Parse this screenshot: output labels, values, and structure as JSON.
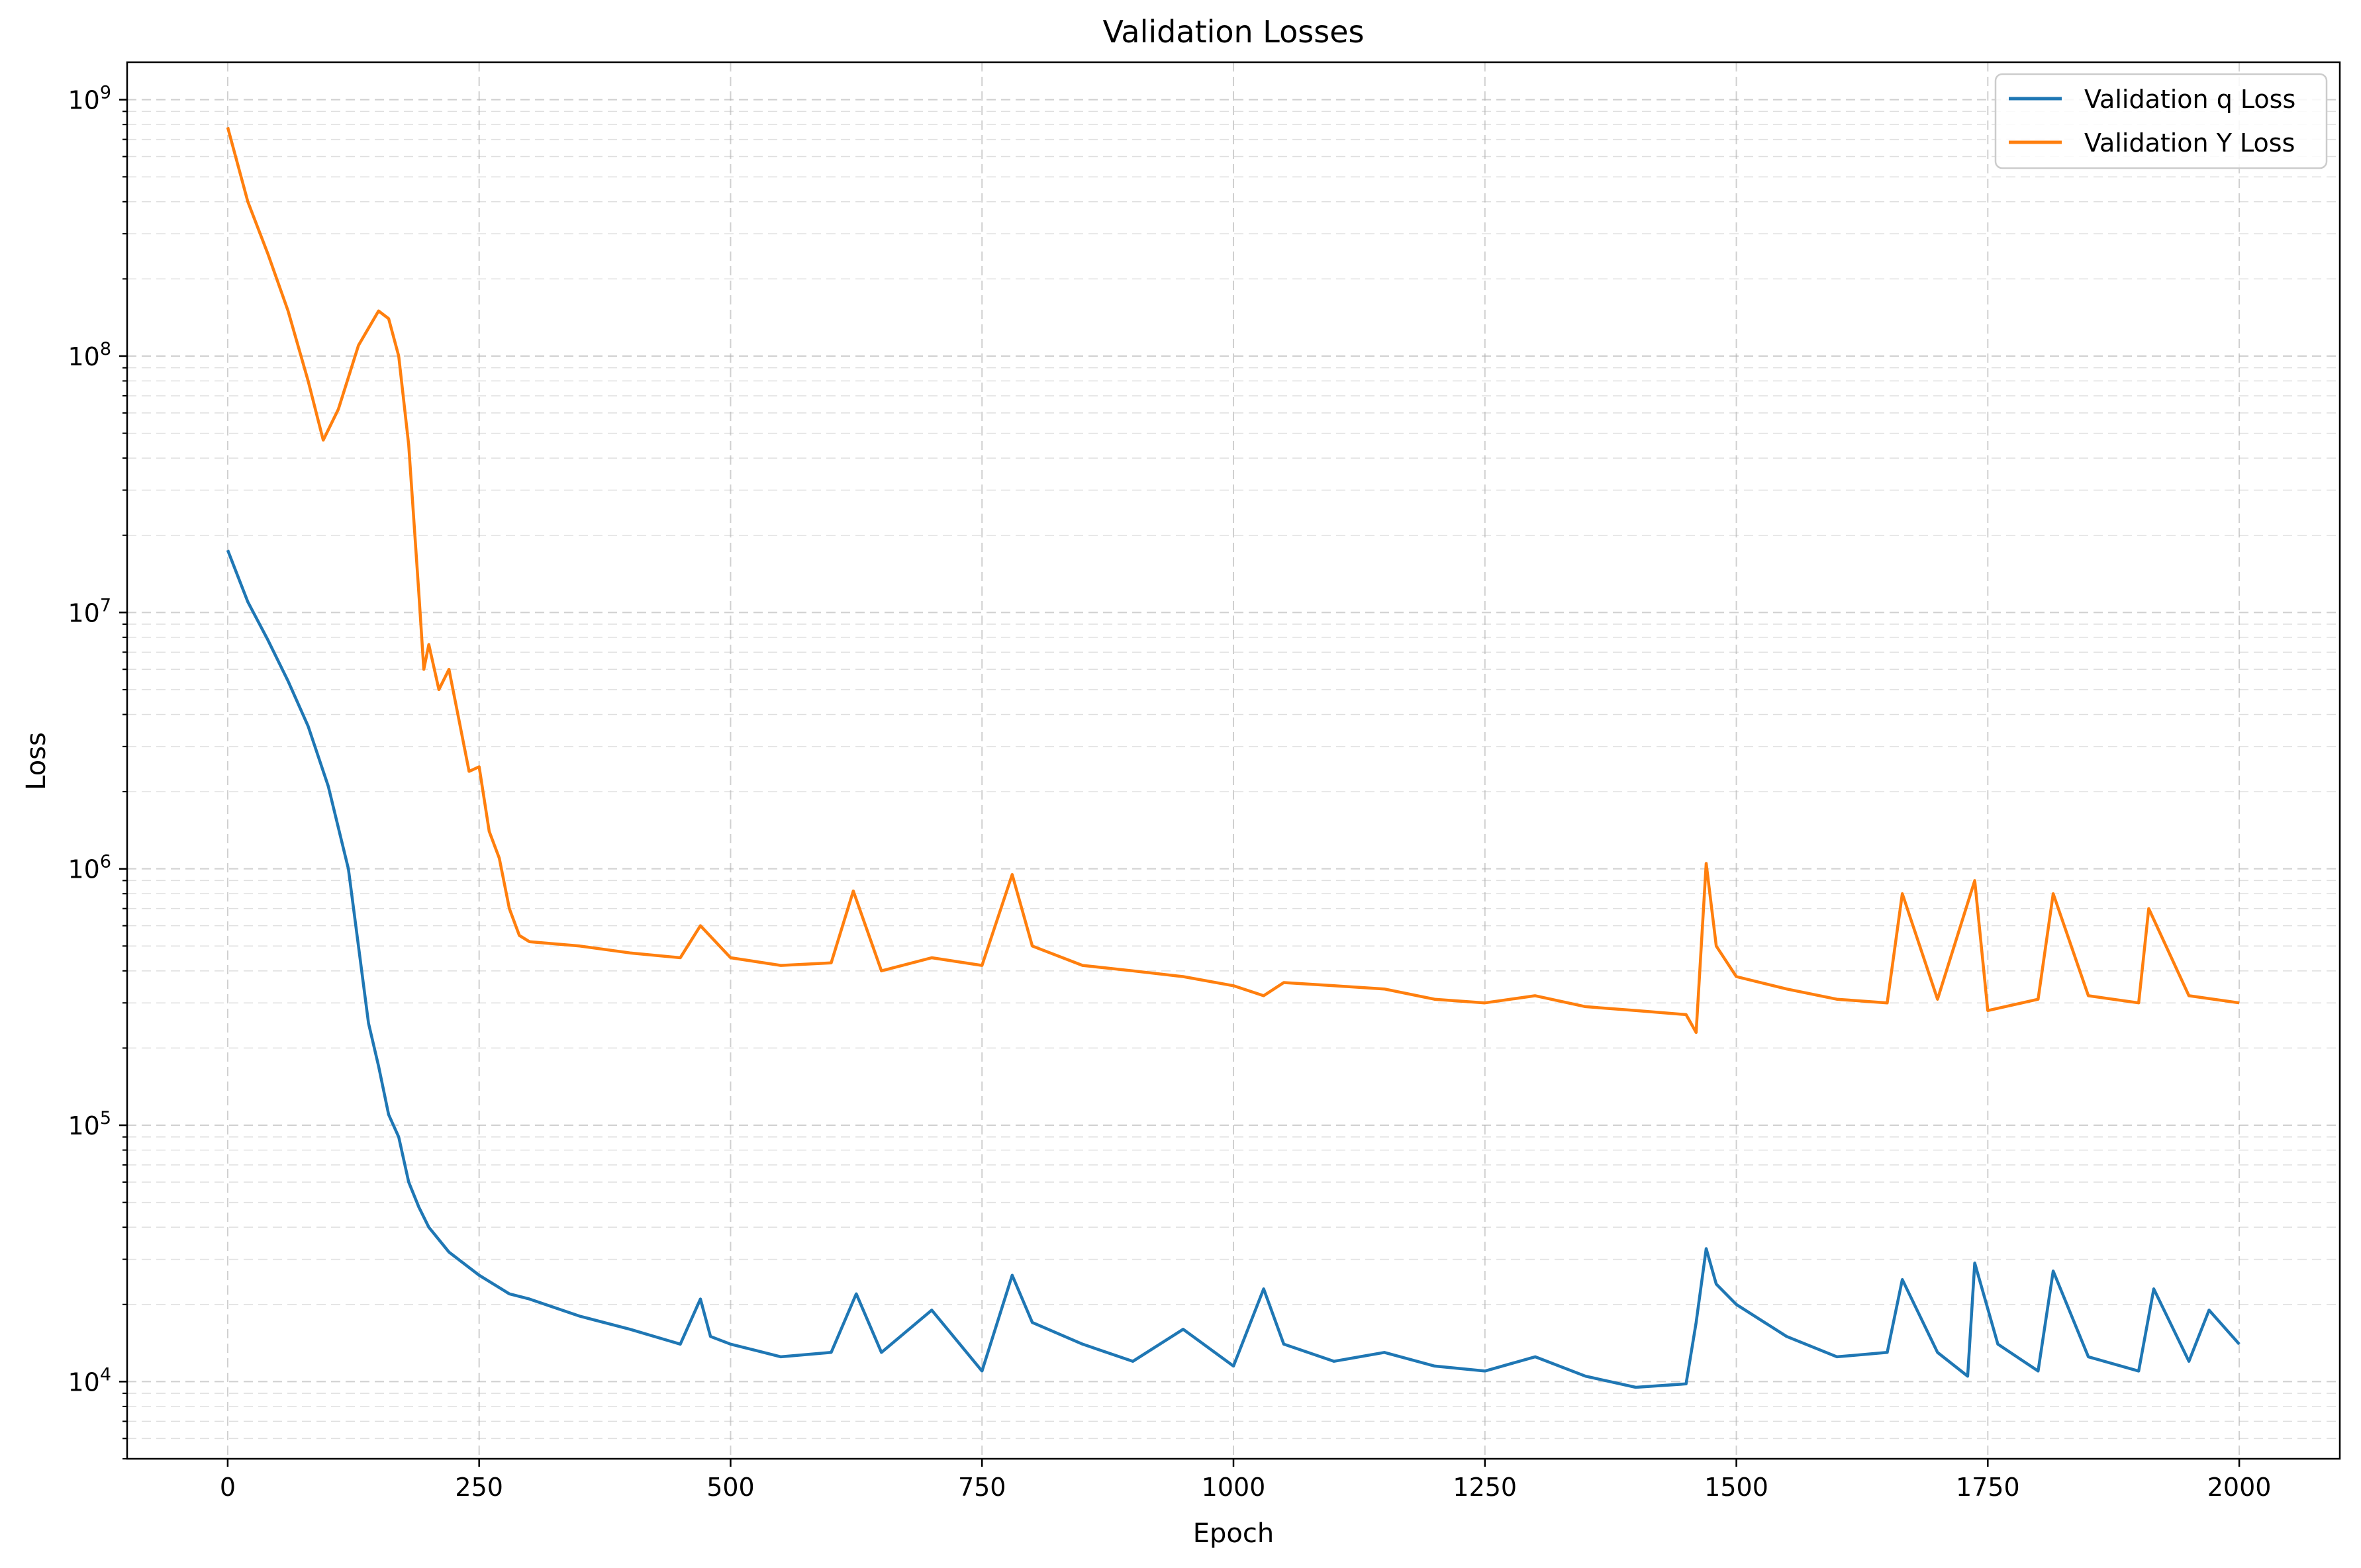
{
  "chart_data": {
    "type": "line",
    "title": "Validation Losses",
    "xlabel": "Epoch",
    "ylabel": "Loss",
    "xlim": [
      -100,
      2100
    ],
    "ylim": [
      5000,
      1400000000
    ],
    "yscale": "log",
    "grid": true,
    "legend_position": "top-right",
    "x_ticks": [
      0,
      250,
      500,
      750,
      1000,
      1250,
      1500,
      1750,
      2000
    ],
    "x_tick_labels": [
      "0",
      "250",
      "500",
      "750",
      "1000",
      "1250",
      "1500",
      "1750",
      "2000"
    ],
    "y_tick_values": [
      10000,
      100000,
      1000000,
      10000000,
      100000000,
      1000000000
    ],
    "y_tick_bases": [
      "10",
      "10",
      "10",
      "10",
      "10",
      "10"
    ],
    "y_tick_exponents": [
      "4",
      "5",
      "6",
      "7",
      "8",
      "9"
    ],
    "series": [
      {
        "name": "Validation q Loss",
        "color": "#1f77b4",
        "x": [
          0,
          20,
          40,
          60,
          80,
          100,
          120,
          140,
          150,
          160,
          170,
          180,
          190,
          200,
          220,
          250,
          280,
          300,
          350,
          400,
          450,
          470,
          480,
          500,
          550,
          600,
          625,
          650,
          700,
          750,
          780,
          800,
          850,
          900,
          950,
          1000,
          1030,
          1050,
          1100,
          1150,
          1200,
          1250,
          1300,
          1350,
          1400,
          1450,
          1460,
          1470,
          1480,
          1500,
          1550,
          1600,
          1650,
          1665,
          1700,
          1730,
          1737,
          1760,
          1800,
          1815,
          1850,
          1900,
          1915,
          1950,
          1970,
          2000
        ],
        "y": [
          17500000,
          11000000,
          7800000,
          5400000,
          3600000,
          2100000,
          1000000,
          250000,
          170000,
          110000,
          90000,
          60000,
          48000,
          40000,
          32000,
          26000,
          22000,
          21000,
          18000,
          16000,
          14000,
          21000,
          15000,
          14000,
          12500,
          13000,
          22000,
          13000,
          19000,
          11000,
          26000,
          17000,
          14000,
          12000,
          16000,
          11500,
          23000,
          14000,
          12000,
          13000,
          11500,
          11000,
          12500,
          10500,
          9500,
          9800,
          17000,
          33000,
          24000,
          20000,
          15000,
          12500,
          13000,
          25000,
          13000,
          10500,
          29000,
          14000,
          11000,
          27000,
          12500,
          11000,
          23000,
          12000,
          19000,
          14000
        ]
      },
      {
        "name": "Validation Y Loss",
        "color": "#ff7f0e",
        "x": [
          0,
          20,
          40,
          60,
          80,
          95,
          110,
          130,
          150,
          160,
          170,
          180,
          190,
          195,
          200,
          210,
          220,
          230,
          240,
          250,
          260,
          270,
          280,
          290,
          300,
          350,
          400,
          450,
          470,
          500,
          550,
          600,
          622,
          650,
          700,
          750,
          780,
          800,
          850,
          900,
          950,
          1000,
          1030,
          1050,
          1100,
          1150,
          1200,
          1250,
          1300,
          1350,
          1400,
          1450,
          1460,
          1470,
          1480,
          1500,
          1550,
          1600,
          1650,
          1665,
          1700,
          1737,
          1750,
          1800,
          1815,
          1850,
          1900,
          1910,
          1950,
          2000
        ],
        "y": [
          780000000,
          400000000,
          250000000,
          150000000,
          80000000,
          47000000,
          62000000,
          110000000,
          150000000,
          140000000,
          100000000,
          45000000,
          12000000,
          6000000,
          7500000,
          5000000,
          6000000,
          3800000,
          2400000,
          2500000,
          1400000,
          1100000,
          700000,
          550000,
          520000,
          500000,
          470000,
          450000,
          600000,
          450000,
          420000,
          430000,
          820000,
          400000,
          450000,
          420000,
          950000,
          500000,
          420000,
          400000,
          380000,
          350000,
          320000,
          360000,
          350000,
          340000,
          310000,
          300000,
          320000,
          290000,
          280000,
          270000,
          230000,
          1050000,
          500000,
          380000,
          340000,
          310000,
          300000,
          800000,
          310000,
          900000,
          280000,
          310000,
          800000,
          320000,
          300000,
          700000,
          320000,
          300000
        ]
      }
    ]
  }
}
